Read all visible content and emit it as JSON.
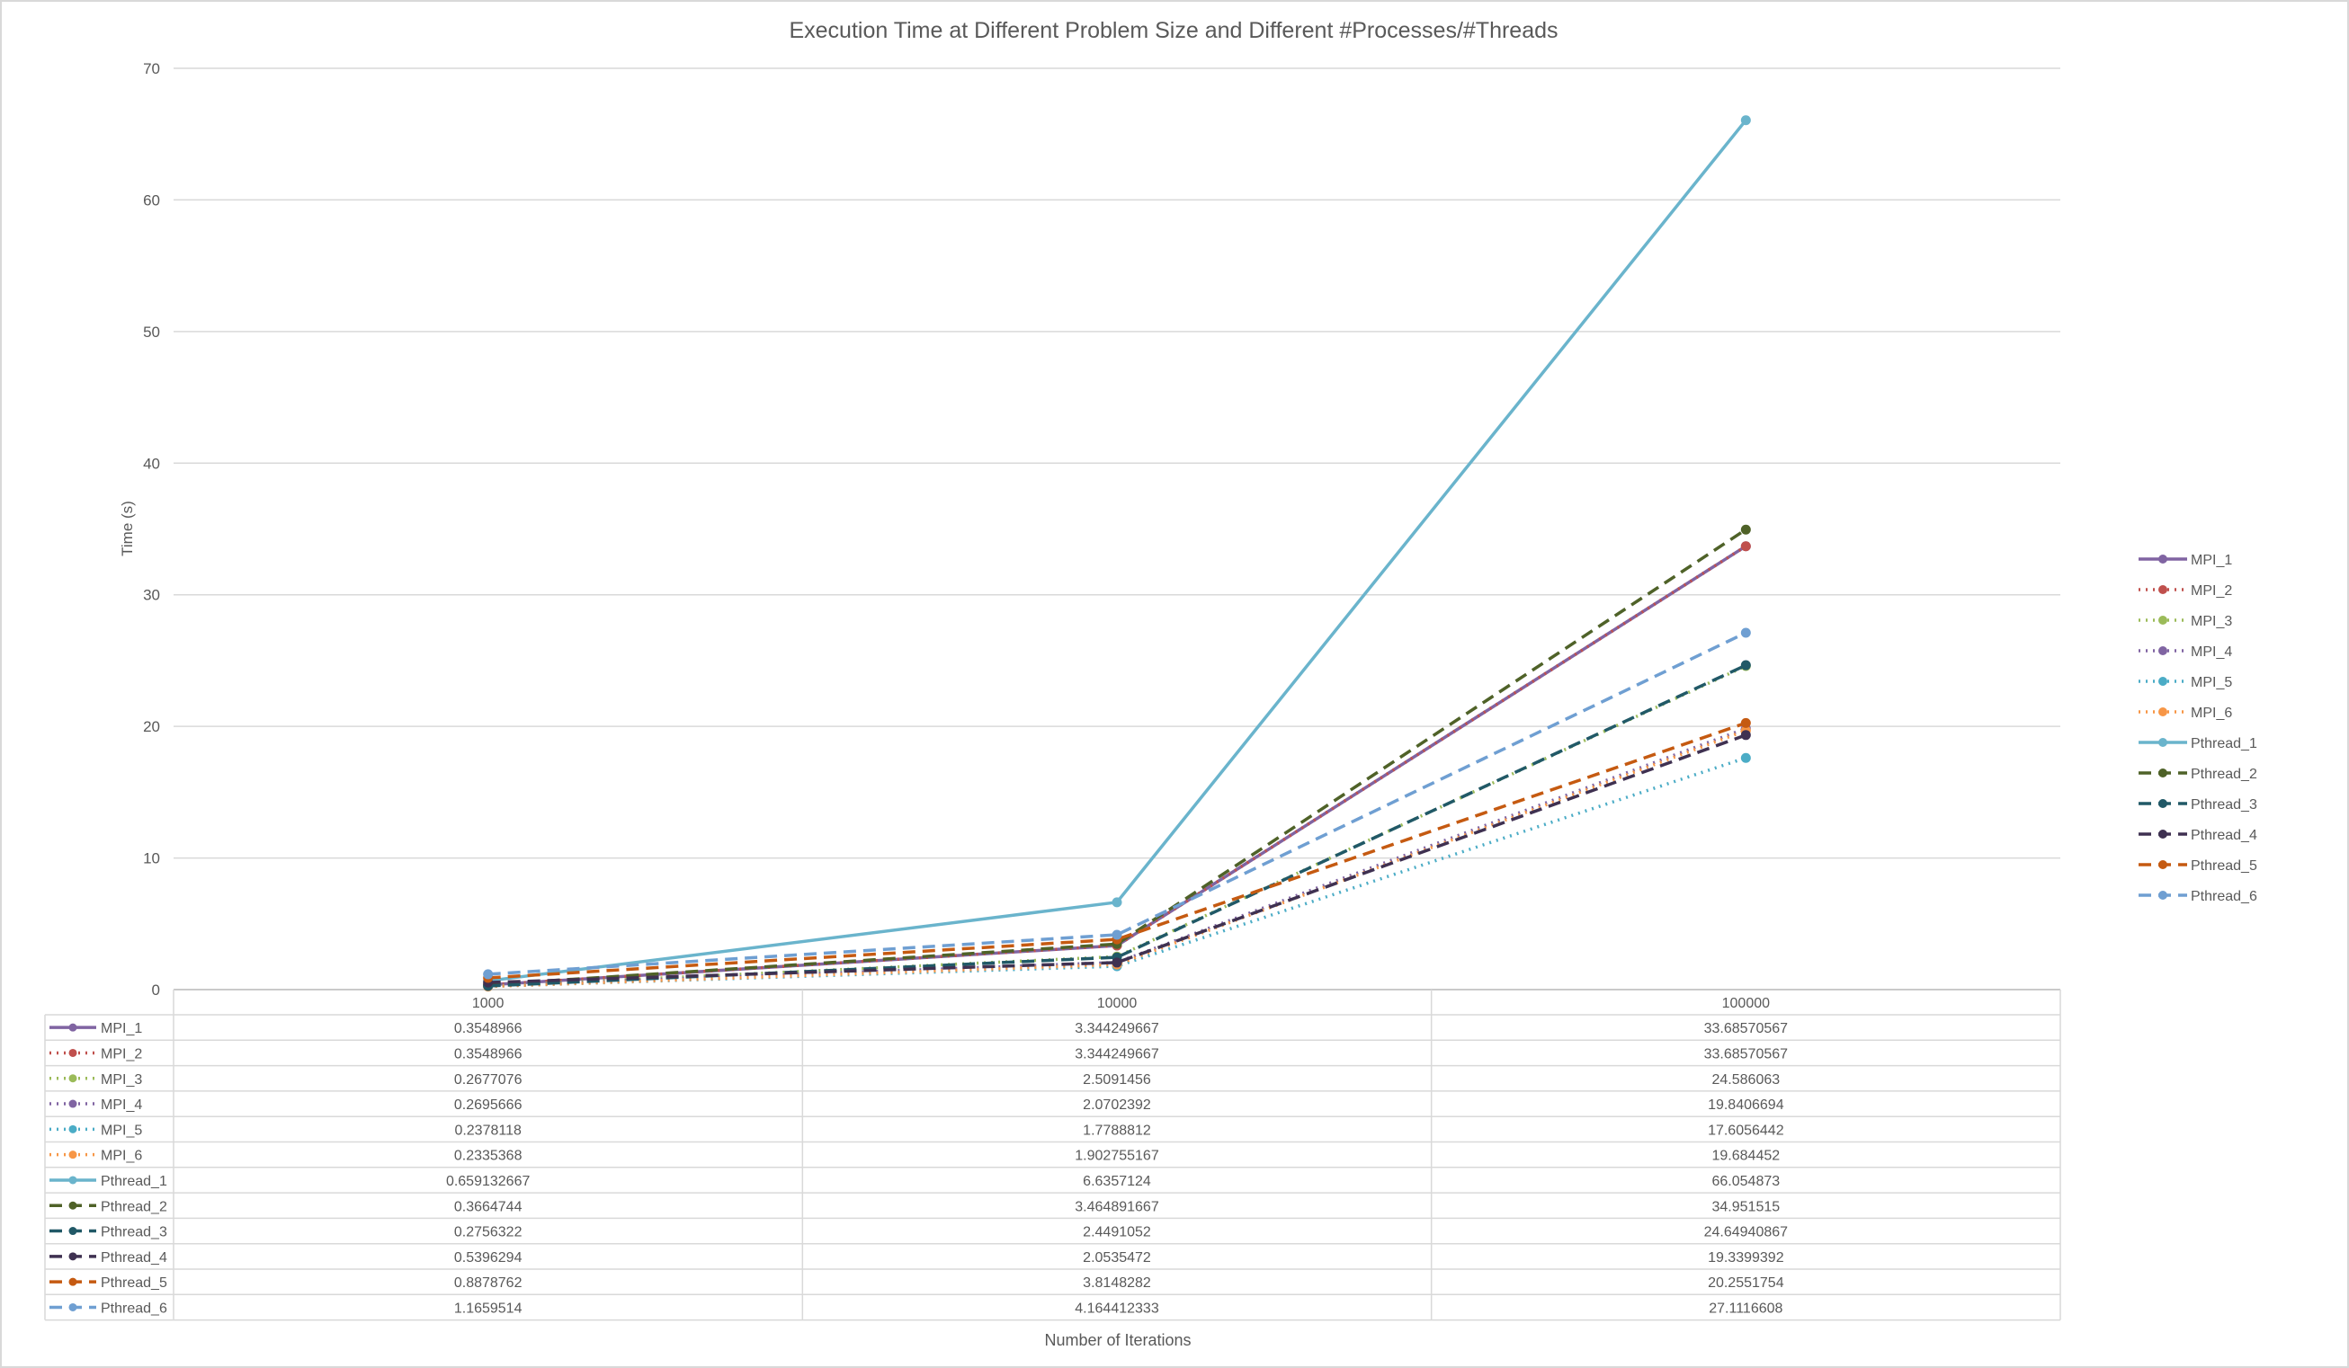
{
  "chart_data": {
    "type": "line",
    "title": "Execution Time at Different Problem Size and Different #Processes/#Threads",
    "xlabel": "Number of Iterations",
    "ylabel": "Time (s)",
    "ylim": [
      0,
      70
    ],
    "yticks": [
      "0",
      "10",
      "20",
      "30",
      "40",
      "50",
      "60",
      "70"
    ],
    "categories": [
      "1000",
      "10000",
      "100000"
    ],
    "grid": true,
    "legend_position": "right",
    "data_table": true,
    "series": [
      {
        "name": "MPI_1",
        "color": "#8064a2",
        "style": "solid",
        "values": [
          0.3548966,
          3.344249667,
          33.68570567
        ],
        "labels": [
          "0.3548966",
          "3.344249667",
          "33.68570567"
        ]
      },
      {
        "name": "MPI_2",
        "color": "#c0504d",
        "style": "dot",
        "values": [
          0.3548966,
          3.344249667,
          33.68570567
        ],
        "labels": [
          "0.3548966",
          "3.344249667",
          "33.68570567"
        ]
      },
      {
        "name": "MPI_3",
        "color": "#9bbb59",
        "style": "dot",
        "values": [
          0.2677076,
          2.5091456,
          24.586063
        ],
        "labels": [
          "0.2677076",
          "2.5091456",
          "24.586063"
        ]
      },
      {
        "name": "MPI_4",
        "color": "#8064a2",
        "style": "dot",
        "values": [
          0.2695666,
          2.0702392,
          19.8406694
        ],
        "labels": [
          "0.2695666",
          "2.0702392",
          "19.8406694"
        ]
      },
      {
        "name": "MPI_5",
        "color": "#4bacc6",
        "style": "dot",
        "values": [
          0.2378118,
          1.7788812,
          17.6056442
        ],
        "labels": [
          "0.2378118",
          "1.7788812",
          "17.6056442"
        ]
      },
      {
        "name": "MPI_6",
        "color": "#f79646",
        "style": "dot",
        "values": [
          0.2335368,
          1.902755167,
          19.684452
        ],
        "labels": [
          "0.2335368",
          "1.902755167",
          "19.684452"
        ]
      },
      {
        "name": "Pthread_1",
        "color": "#6ab4cc",
        "style": "solid",
        "values": [
          0.659132667,
          6.6357124,
          66.054873
        ],
        "labels": [
          "0.659132667",
          "6.6357124",
          "66.054873"
        ]
      },
      {
        "name": "Pthread_2",
        "color": "#4f6228",
        "style": "dash",
        "values": [
          0.3664744,
          3.464891667,
          34.951515
        ],
        "labels": [
          "0.3664744",
          "3.464891667",
          "34.951515"
        ]
      },
      {
        "name": "Pthread_3",
        "color": "#215967",
        "style": "dash",
        "values": [
          0.2756322,
          2.4491052,
          24.64940867
        ],
        "labels": [
          "0.2756322",
          "2.4491052",
          "24.64940867"
        ]
      },
      {
        "name": "Pthread_4",
        "color": "#3f3151",
        "style": "dash",
        "values": [
          0.5396294,
          2.0535472,
          19.3399392
        ],
        "labels": [
          "0.5396294",
          "2.0535472",
          "19.3399392"
        ]
      },
      {
        "name": "Pthread_5",
        "color": "#c55a11",
        "style": "dash",
        "values": [
          0.8878762,
          3.8148282,
          20.2551754
        ],
        "labels": [
          "0.8878762",
          "3.8148282",
          "20.2551754"
        ]
      },
      {
        "name": "Pthread_6",
        "color": "#6f9fd2",
        "style": "dash",
        "values": [
          1.1659514,
          4.164412333,
          27.1116608
        ],
        "labels": [
          "1.1659514",
          "4.164412333",
          "27.1116608"
        ]
      }
    ]
  }
}
